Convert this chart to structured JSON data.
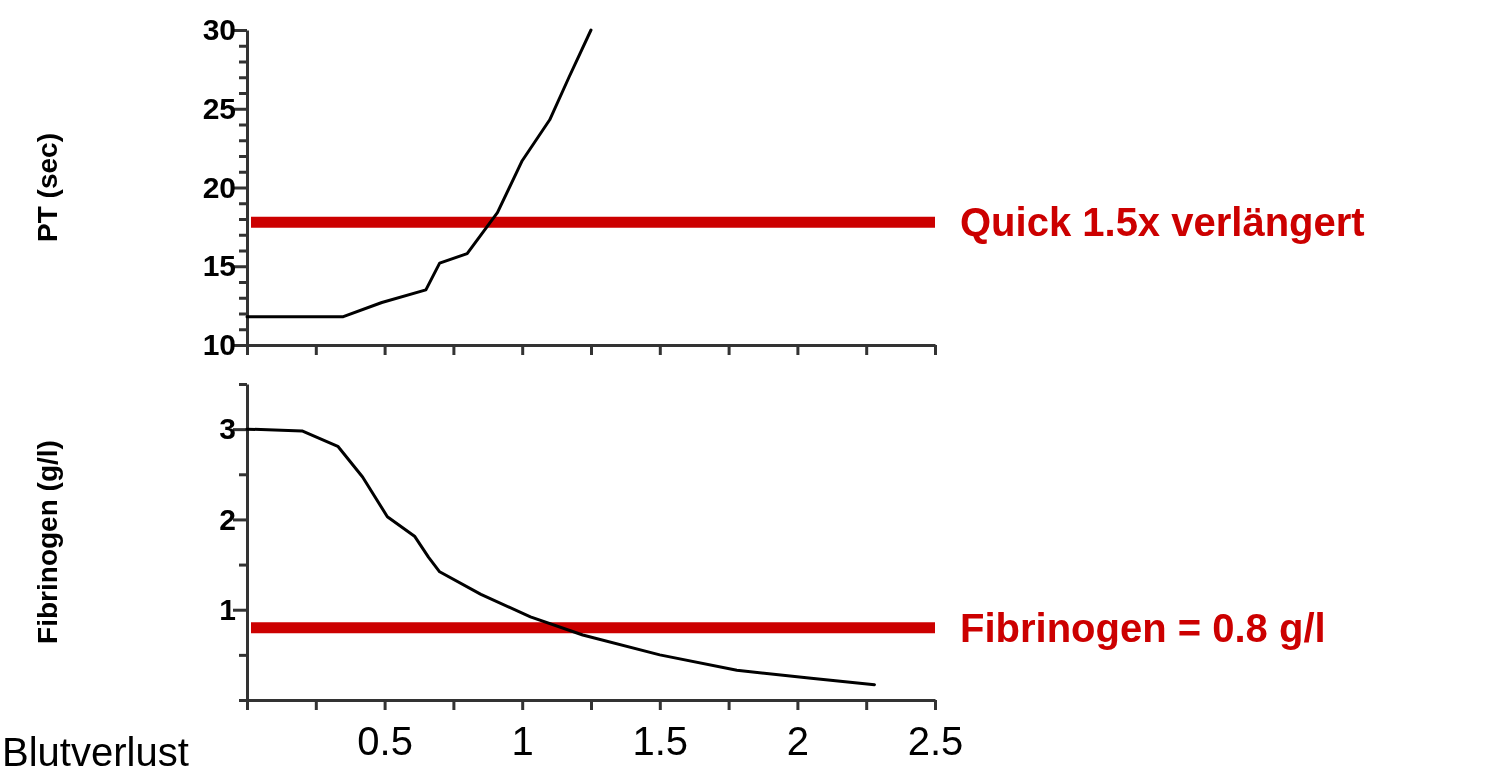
{
  "chart_data": [
    {
      "type": "line",
      "ylabel": "PT (sec)",
      "xlim": [
        0,
        2.5
      ],
      "ylim": [
        10,
        30
      ],
      "tick_labels": "y",
      "xticks": [
        {
          "value": 0,
          "label": null
        },
        {
          "value": 0.25,
          "label": null
        },
        {
          "value": 0.5,
          "label": null
        },
        {
          "value": 0.75,
          "label": null
        },
        {
          "value": 1,
          "label": null
        },
        {
          "value": 1.25,
          "label": null
        },
        {
          "value": 1.5,
          "label": null
        },
        {
          "value": 1.75,
          "label": null
        },
        {
          "value": 2,
          "label": null
        },
        {
          "value": 2.25,
          "label": null
        },
        {
          "value": 2.5,
          "label": null
        }
      ],
      "yticks": [
        10,
        {
          "value": 11,
          "label": null
        },
        {
          "value": 12,
          "label": null
        },
        {
          "value": 13,
          "label": null
        },
        {
          "value": 14,
          "label": null
        },
        15,
        {
          "value": 16,
          "label": null
        },
        {
          "value": 17,
          "label": null
        },
        {
          "value": 18,
          "label": null
        },
        {
          "value": 19,
          "label": null
        },
        20,
        {
          "value": 21,
          "label": null
        },
        {
          "value": 22,
          "label": null
        },
        {
          "value": 23,
          "label": null
        },
        {
          "value": 24,
          "label": null
        },
        25,
        {
          "value": 26,
          "label": null
        },
        {
          "value": 27,
          "label": null
        },
        {
          "value": 28,
          "label": null
        },
        {
          "value": 29,
          "label": null
        },
        30
      ],
      "series": [
        {
          "color": "#000000",
          "x": [
            0,
            0.35,
            0.49,
            0.65,
            0.7,
            0.8,
            0.91,
            1.0,
            1.1,
            1.17,
            1.25
          ],
          "values": [
            11.8,
            11.8,
            12.7,
            13.5,
            15.2,
            15.8,
            18.4,
            21.7,
            24.3,
            27,
            30
          ]
        }
      ],
      "ref_lines": [
        {
          "axis": "y",
          "value": 17.8,
          "label": "Quick 1.5x verlängert",
          "color": "#cc0000"
        }
      ]
    },
    {
      "type": "line",
      "ylabel": "Fibrinogen (g/l)",
      "xlabel": "Blutverlust",
      "xlim": [
        0,
        2.5
      ],
      "ylim": [
        0,
        3.5
      ],
      "xticks": [
        {
          "value": 0,
          "label": null
        },
        {
          "value": 0.25,
          "label": null
        },
        0.5,
        {
          "value": 0.75,
          "label": null
        },
        1,
        {
          "value": 1.25,
          "label": null
        },
        1.5,
        {
          "value": 1.75,
          "label": null
        },
        2,
        {
          "value": 2.25,
          "label": null
        },
        2.5
      ],
      "yticks": [
        {
          "value": 0,
          "label": null
        },
        {
          "value": 0.5,
          "label": null
        },
        1,
        {
          "value": 1.5,
          "label": null
        },
        2,
        {
          "value": 2.5,
          "label": null
        },
        3,
        {
          "value": 3.5,
          "label": null
        }
      ],
      "series": [
        {
          "color": "#000000",
          "x": [
            0,
            0.2,
            0.33,
            0.42,
            0.51,
            0.61,
            0.66,
            0.7,
            0.85,
            1.03,
            1.22,
            1.5,
            1.78,
            2.05,
            2.28
          ],
          "values": [
            3,
            2.98,
            2.81,
            2.47,
            2.03,
            1.81,
            1.58,
            1.42,
            1.17,
            0.92,
            0.72,
            0.5,
            0.33,
            0.24,
            0.17
          ]
        }
      ],
      "ref_lines": [
        {
          "axis": "y",
          "value": 0.8,
          "label": "Fibrinogen = 0.8 g/l",
          "color": "#cc0000"
        }
      ]
    }
  ]
}
